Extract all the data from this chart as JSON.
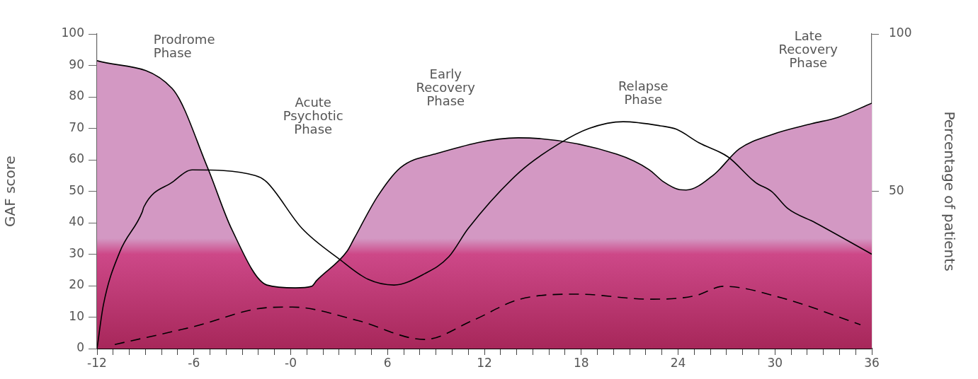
{
  "chart_data": {
    "type": "area",
    "xlabel": null,
    "ylabel": "GAF score",
    "y2label": "Percentage of patients",
    "annotations": [
      "Prodrome\nPhase",
      "Acute\nPsychotic\nPhase",
      "Early\nRecovery\nPhase",
      "Relapse\nPhase",
      "Late\nRecovery\nPhase"
    ],
    "series": [
      {
        "type": "area",
        "color": "#d398c3",
        "x": [
          -12,
          -7.35,
          -5.15,
          -3.66,
          -1.47,
          0.29,
          1.3,
          1.6,
          3.5,
          3.93,
          5.4,
          6.8,
          9.06,
          14.1,
          20.2,
          22.2,
          23.1,
          24.1,
          24.5,
          26.2,
          27.8,
          29.8,
          32.3,
          33.9,
          36
        ],
        "values": [
          91.5,
          82.7,
          57.5,
          38,
          20.2,
          19.3,
          19.8,
          21.6,
          31,
          35,
          48.5,
          57.5,
          62,
          67,
          61.8,
          56.9,
          53,
          50.5,
          50.4,
          55.2,
          63.5,
          68,
          71.5,
          73.5,
          78
        ]
      },
      {
        "type": "line",
        "color": "#000000",
        "line_style": "solid",
        "x": [
          -12,
          -11.6,
          -10.6,
          -9.2,
          -9.1,
          -7.3,
          -6.1,
          -2.2,
          -1.5,
          0.7,
          3.05,
          4.8,
          6.4,
          8.3,
          9.8,
          11,
          14.2,
          16.65,
          18.5,
          20.6,
          22.9,
          23.9,
          25.3,
          27.1,
          28.8,
          29.8,
          30.8,
          32.5,
          36
        ],
        "values": [
          0,
          14,
          30.6,
          43.4,
          45,
          53,
          56.8,
          55,
          53,
          38.2,
          28.3,
          22,
          20.2,
          23.8,
          29.2,
          38.2,
          56.2,
          65.2,
          70,
          72.1,
          70.8,
          69.7,
          65.4,
          60.9,
          52.8,
          49.9,
          44.5,
          40,
          30
        ]
      },
      {
        "type": "line",
        "color": "#000000",
        "line_style": "dashed",
        "x": [
          -10.9,
          -6,
          -1.5,
          0.1,
          4.1,
          8.3,
          11.3,
          14.2,
          17.8,
          22.2,
          24,
          25.2,
          26.8,
          30.5,
          35.3
        ],
        "values": [
          1.3,
          7,
          13,
          13.2,
          9,
          2.9,
          9,
          15.7,
          17.3,
          15.7,
          16,
          17,
          19.8,
          16,
          7.6
        ]
      }
    ],
    "xlim": [
      -12,
      36
    ],
    "xticks": [
      -12,
      {
        "value": -11,
        "label": null
      },
      {
        "value": -10,
        "label": null
      },
      {
        "value": -9,
        "label": null
      },
      {
        "value": -8,
        "label": null
      },
      {
        "value": -7,
        "label": null
      },
      -6,
      {
        "value": -5,
        "label": null
      },
      {
        "value": -4,
        "label": null
      },
      {
        "value": -3,
        "label": null
      },
      {
        "value": -2,
        "label": null
      },
      {
        "value": -1,
        "label": null
      },
      {
        "value": 0,
        "label": "-0"
      },
      {
        "value": 1,
        "label": null
      },
      {
        "value": 2,
        "label": null
      },
      {
        "value": 3,
        "label": null
      },
      {
        "value": 4,
        "label": null
      },
      {
        "value": 5,
        "label": null
      },
      6,
      {
        "value": 7,
        "label": null
      },
      {
        "value": 8,
        "label": null
      },
      {
        "value": 9,
        "label": null
      },
      {
        "value": 10,
        "label": null
      },
      {
        "value": 11,
        "label": null
      },
      12,
      {
        "value": 13,
        "label": null
      },
      {
        "value": 14,
        "label": null
      },
      {
        "value": 15,
        "label": null
      },
      {
        "value": 16,
        "label": null
      },
      {
        "value": 17,
        "label": null
      },
      18,
      {
        "value": 19,
        "label": null
      },
      {
        "value": 20,
        "label": null
      },
      {
        "value": 21,
        "label": null
      },
      {
        "value": 22,
        "label": null
      },
      {
        "value": 23,
        "label": null
      },
      24,
      {
        "value": 25,
        "label": null
      },
      {
        "value": 26,
        "label": null
      },
      {
        "value": 27,
        "label": null
      },
      {
        "value": 28,
        "label": null
      },
      {
        "value": 29,
        "label": null
      },
      30,
      {
        "value": 31,
        "label": null
      },
      {
        "value": 32,
        "label": null
      },
      {
        "value": 33,
        "label": null
      },
      {
        "value": 34,
        "label": null
      },
      {
        "value": 35,
        "label": null
      },
      36
    ],
    "ylim": [
      0,
      100
    ],
    "yticks": [
      0,
      10,
      20,
      30,
      40,
      50,
      60,
      70,
      80,
      90,
      100
    ],
    "y2lim": [
      0,
      100
    ],
    "y2ticks": [
      50,
      100
    ],
    "grid": false,
    "legend": false
  }
}
